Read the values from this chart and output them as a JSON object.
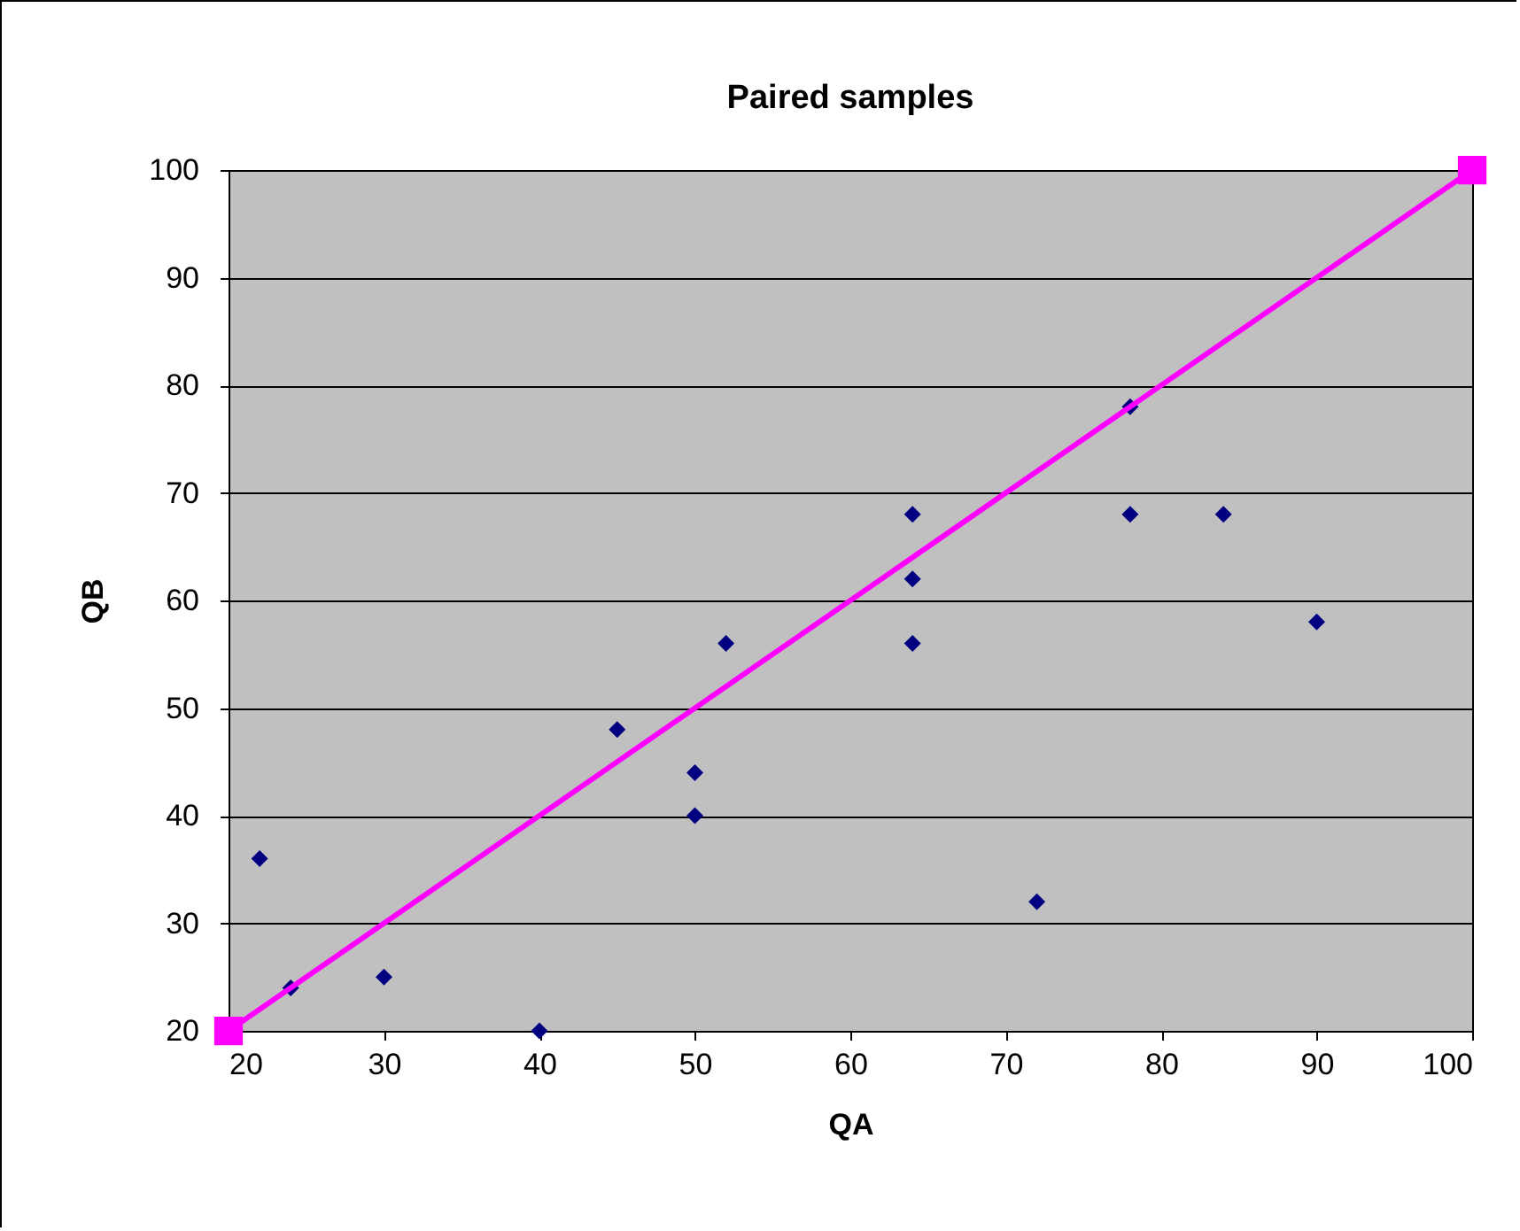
{
  "chart_data": {
    "type": "scatter",
    "title": "Paired samples",
    "xlabel": "QA",
    "ylabel": "QB",
    "xlim": [
      20,
      100
    ],
    "ylim": [
      20,
      100
    ],
    "xticks": [
      20,
      30,
      40,
      50,
      60,
      70,
      80,
      90,
      100
    ],
    "yticks": [
      20,
      30,
      40,
      50,
      60,
      70,
      80,
      90,
      100
    ],
    "grid": "y",
    "series": [
      {
        "color": "#000080",
        "marker": "diamond",
        "x": [
          22,
          24,
          30,
          40,
          45,
          50,
          50,
          52,
          64,
          64,
          64,
          72,
          78,
          78,
          84,
          90
        ],
        "values": [
          36,
          24,
          25,
          20,
          48,
          44,
          40,
          56,
          68,
          62,
          56,
          32,
          78,
          68,
          68,
          58
        ]
      },
      {
        "type": "line",
        "color": "#ff00ff",
        "marker": "square",
        "line_style": "solid",
        "x": [
          20,
          100
        ],
        "values": [
          20,
          100
        ]
      }
    ]
  }
}
